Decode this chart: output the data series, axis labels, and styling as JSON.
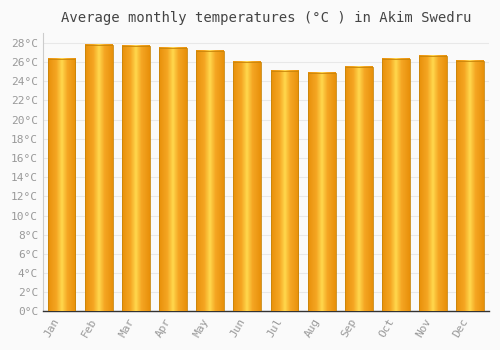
{
  "title": "Average monthly temperatures (°C ) in Akim Swedru",
  "months": [
    "Jan",
    "Feb",
    "Mar",
    "Apr",
    "May",
    "Jun",
    "Jul",
    "Aug",
    "Sep",
    "Oct",
    "Nov",
    "Dec"
  ],
  "values": [
    26.3,
    27.8,
    27.7,
    27.5,
    27.1,
    26.0,
    25.1,
    24.9,
    25.5,
    26.3,
    26.6,
    26.1
  ],
  "bar_color_center": "#FFD84D",
  "bar_color_edge": "#F5A623",
  "bar_border_color": "#C8850A",
  "ylim": [
    0,
    29
  ],
  "ytick_step": 2,
  "background_color": "#FAFAFA",
  "grid_color": "#E8E8E8",
  "title_fontsize": 10,
  "tick_fontsize": 8,
  "bar_width": 0.75
}
